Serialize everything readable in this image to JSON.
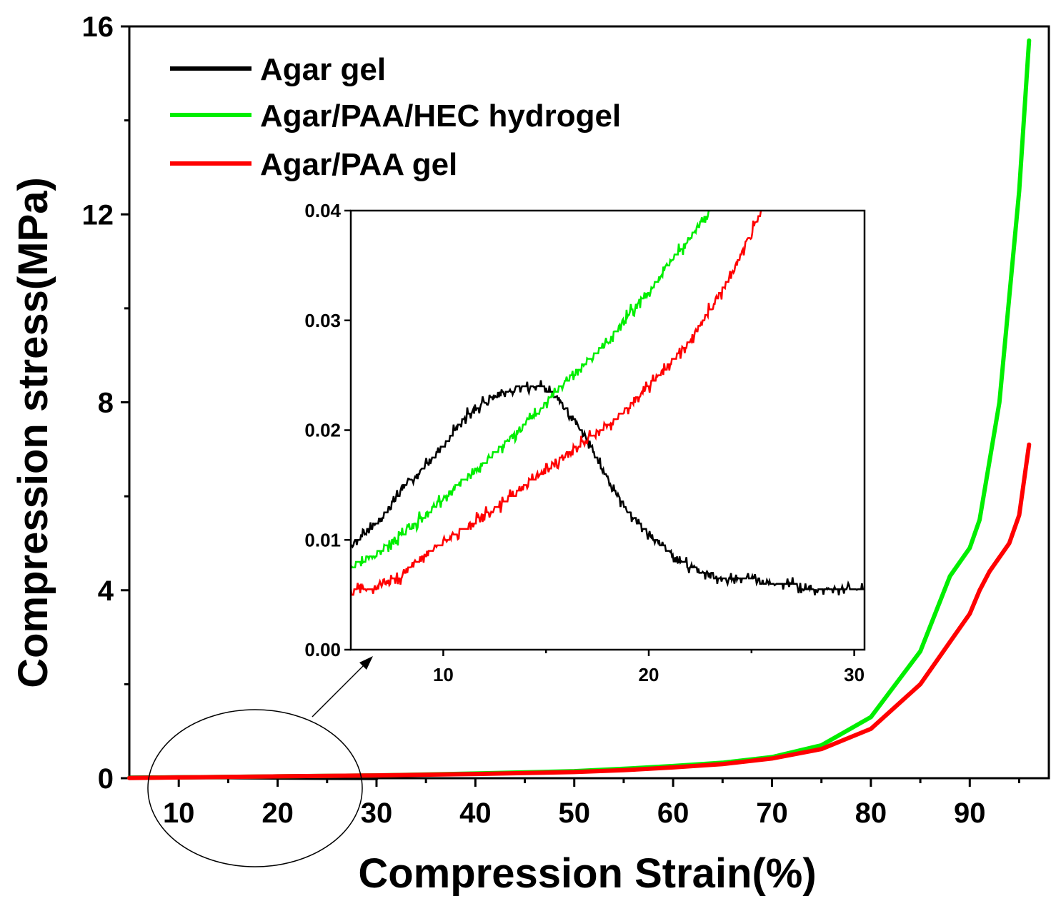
{
  "chart_data": [
    {
      "type": "line",
      "xlabel": "Compression Strain(%)",
      "ylabel": "Compression stress(MPa)",
      "xlim": [
        5,
        98
      ],
      "ylim": [
        0,
        16
      ],
      "xticks": [
        10,
        20,
        30,
        40,
        50,
        60,
        70,
        80,
        90
      ],
      "yticks": [
        0,
        4,
        8,
        12,
        16
      ],
      "grid": false,
      "legend_position": "top-left",
      "series": [
        {
          "name": "Agar gel",
          "color": "#000000",
          "x": [
            5,
            10,
            15,
            20,
            25,
            30
          ],
          "y": [
            0.01,
            0.018,
            0.022,
            0.013,
            0.007,
            0.005
          ]
        },
        {
          "name": "Agar/PAA/HEC hydrogel",
          "color": "#00ee00",
          "x": [
            5,
            20,
            30,
            40,
            50,
            55,
            60,
            65,
            70,
            75,
            80,
            85,
            88,
            90,
            91,
            93,
            95,
            96
          ],
          "y": [
            0.007,
            0.04,
            0.06,
            0.1,
            0.15,
            0.2,
            0.26,
            0.33,
            0.45,
            0.7,
            1.3,
            2.7,
            4.3,
            4.9,
            5.5,
            8.0,
            12.5,
            15.7
          ]
        },
        {
          "name": "Agar/PAA gel",
          "color": "#ff0000",
          "x": [
            5,
            20,
            30,
            40,
            50,
            55,
            60,
            65,
            70,
            75,
            80,
            85,
            88,
            90,
            91,
            92,
            94,
            95,
            96
          ],
          "y": [
            0.005,
            0.04,
            0.06,
            0.09,
            0.13,
            0.17,
            0.23,
            0.3,
            0.42,
            0.62,
            1.05,
            2.0,
            2.9,
            3.5,
            4.0,
            4.4,
            5.0,
            5.6,
            7.1
          ]
        }
      ]
    },
    {
      "type": "line",
      "xlim": [
        5.5,
        30.5
      ],
      "ylim": [
        0,
        0.04
      ],
      "xticks": [
        10,
        20,
        30
      ],
      "yticks": [
        "0.00",
        "0.01",
        "0.02",
        "0.03",
        "0.04"
      ],
      "series": [
        {
          "name": "Agar gel",
          "color": "#000000",
          "x": [
            5.5,
            7,
            8,
            9,
            10,
            11,
            12,
            13,
            14,
            15,
            15.5,
            16,
            17,
            18,
            19,
            20,
            21,
            22,
            23,
            24,
            25,
            26,
            27,
            28,
            29,
            30,
            30.5
          ],
          "y": [
            0.0095,
            0.012,
            0.0145,
            0.0165,
            0.0185,
            0.021,
            0.0225,
            0.0235,
            0.024,
            0.0238,
            0.023,
            0.022,
            0.019,
            0.0155,
            0.0125,
            0.0105,
            0.009,
            0.0075,
            0.0068,
            0.0065,
            0.0064,
            0.006,
            0.0058,
            0.0056,
            0.0055,
            0.0055,
            0.0055
          ]
        },
        {
          "name": "Agar/PAA/HEC hydrogel",
          "color": "#00ee00",
          "x": [
            5.5,
            7,
            8,
            9,
            10,
            11,
            12,
            13,
            14,
            15,
            16,
            17,
            18,
            19,
            20,
            21,
            22,
            23
          ],
          "y": [
            0.0075,
            0.009,
            0.0105,
            0.012,
            0.0138,
            0.0155,
            0.017,
            0.0188,
            0.0205,
            0.0225,
            0.0245,
            0.0262,
            0.028,
            0.0305,
            0.0325,
            0.0352,
            0.0375,
            0.04
          ]
        },
        {
          "name": "Agar/PAA gel",
          "color": "#ff0000",
          "x": [
            5.5,
            7,
            8,
            9,
            10,
            11,
            12,
            13,
            14,
            15,
            16,
            17,
            18,
            19,
            20,
            21,
            22,
            23,
            24,
            25,
            25.5
          ],
          "y": [
            0.0052,
            0.0058,
            0.0068,
            0.0085,
            0.0098,
            0.011,
            0.0122,
            0.0135,
            0.015,
            0.0163,
            0.0178,
            0.0192,
            0.0205,
            0.022,
            0.024,
            0.026,
            0.028,
            0.031,
            0.034,
            0.038,
            0.04
          ]
        }
      ]
    }
  ]
}
